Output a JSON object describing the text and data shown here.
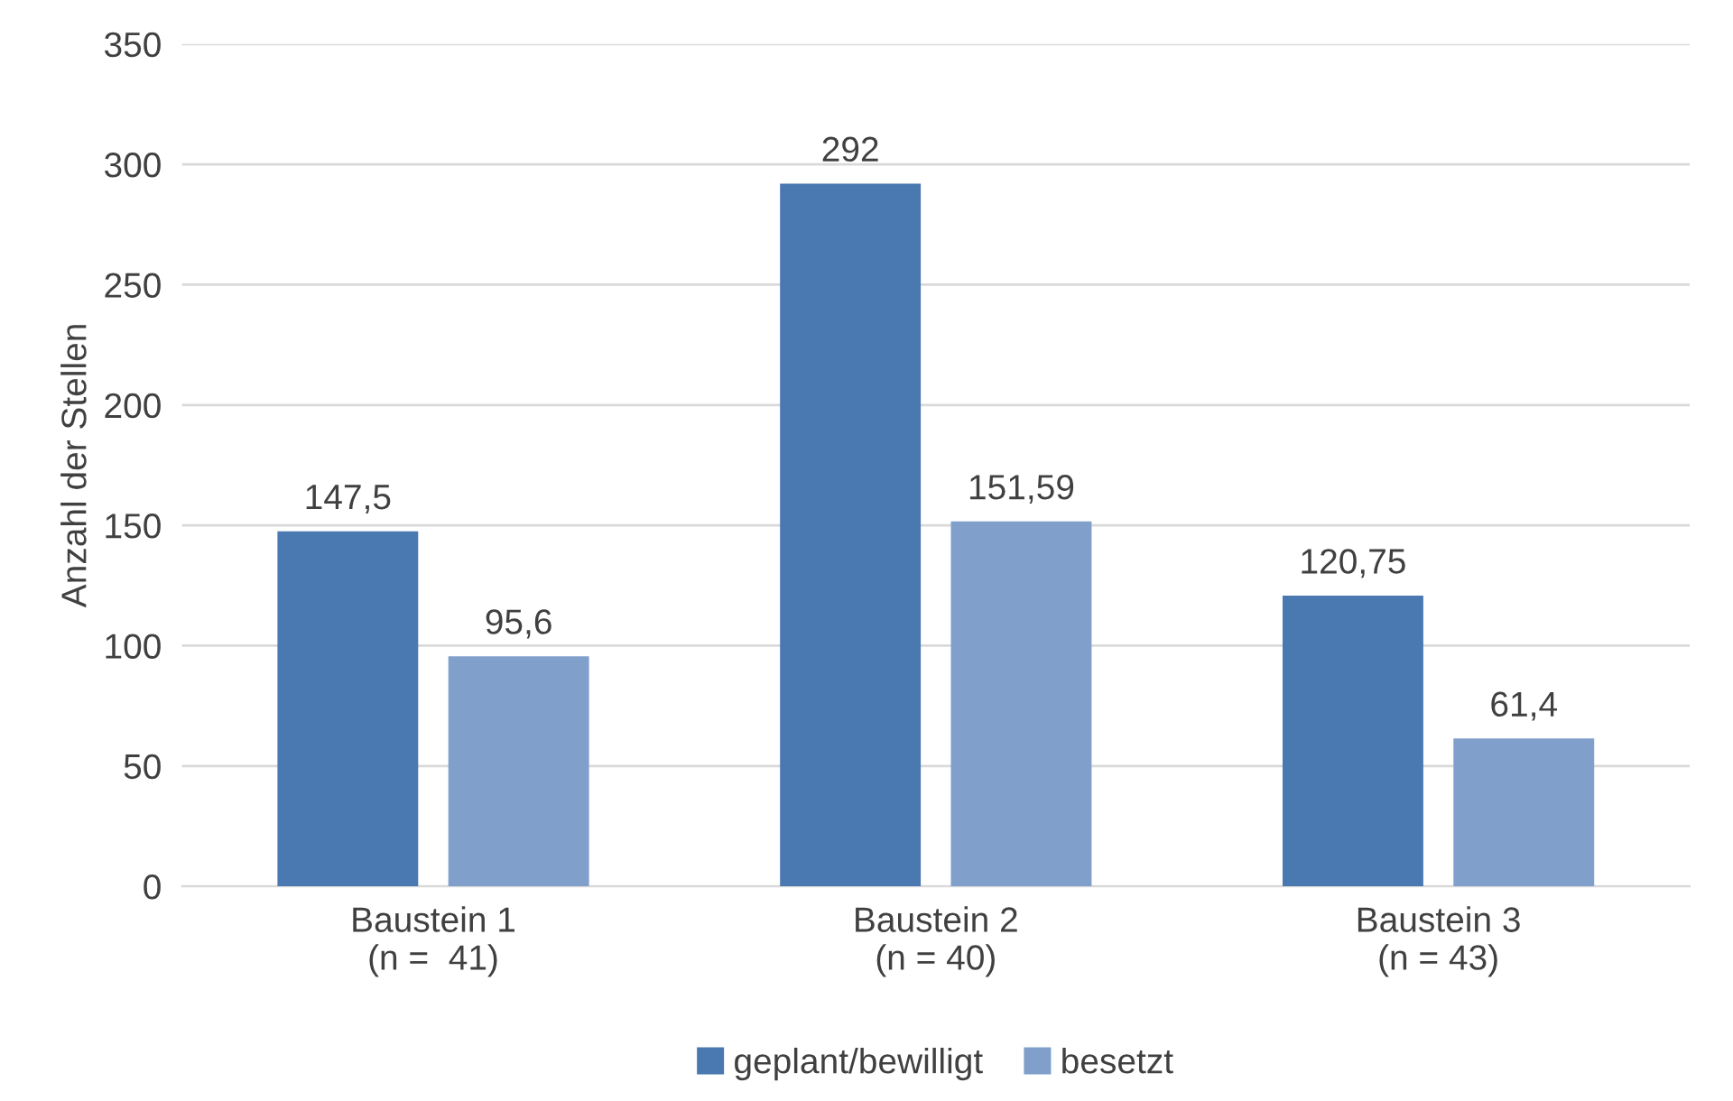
{
  "chart_data": {
    "type": "bar",
    "ylabel": "Anzahl der Stellen",
    "categories": [
      "Baustein 1\n(n =  41)",
      "Baustein 2\n(n = 40)",
      "Baustein 3\n(n = 43)"
    ],
    "series": [
      {
        "name": "geplant/bewilligt",
        "color": "#4a78b0",
        "values": [
          147.5,
          292,
          120.75
        ],
        "value_labels": [
          "147,5",
          "292",
          "120,75"
        ]
      },
      {
        "name": "besetzt",
        "color": "#809fcb",
        "values": [
          95.6,
          151.59,
          61.4
        ],
        "value_labels": [
          "95,6",
          "151,59",
          "61,4"
        ]
      }
    ],
    "ylim": [
      0,
      350
    ],
    "yticks": [
      0,
      50,
      100,
      150,
      200,
      250,
      300,
      350
    ],
    "grid": "y",
    "legend": "bottom"
  }
}
